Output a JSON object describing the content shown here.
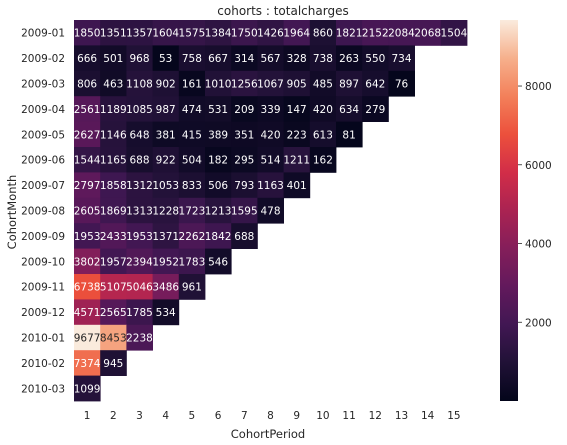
{
  "chart_data": {
    "type": "heatmap",
    "title": "cohorts : totalcharges",
    "xlabel": "CohortPeriod",
    "ylabel": "CohortMonth",
    "x_categories": [
      "1",
      "2",
      "3",
      "4",
      "5",
      "6",
      "7",
      "8",
      "9",
      "10",
      "11",
      "12",
      "13",
      "14",
      "15"
    ],
    "y_categories": [
      "2009-01",
      "2009-02",
      "2009-03",
      "2009-04",
      "2009-05",
      "2009-06",
      "2009-07",
      "2009-08",
      "2009-09",
      "2009-10",
      "2009-11",
      "2009-12",
      "2010-01",
      "2010-02",
      "2010-03"
    ],
    "values": [
      [
        1850,
        1351,
        1357,
        1604,
        1575,
        1384,
        1750,
        1426,
        1964,
        860,
        1821,
        2152,
        2084,
        2068,
        1504
      ],
      [
        666,
        501,
        968,
        53,
        758,
        667,
        314,
        567,
        328,
        738,
        263,
        550,
        734
      ],
      [
        806,
        463,
        1108,
        902,
        161,
        1010,
        1256,
        1067,
        905,
        485,
        897,
        642,
        76
      ],
      [
        2561,
        1189,
        1085,
        987,
        474,
        531,
        209,
        339,
        147,
        420,
        634,
        279
      ],
      [
        2627,
        1146,
        648,
        381,
        415,
        389,
        351,
        420,
        223,
        613,
        81
      ],
      [
        1544,
        1165,
        688,
        922,
        504,
        182,
        295,
        514,
        1211,
        162
      ],
      [
        2797,
        1858,
        1312,
        1053,
        833,
        506,
        793,
        1163,
        401
      ],
      [
        2605,
        1869,
        1313,
        1228,
        1723,
        1213,
        1595,
        478
      ],
      [
        1953,
        2433,
        1953,
        1371,
        2262,
        1842,
        688
      ],
      [
        3802,
        1957,
        2394,
        1952,
        1783,
        546
      ],
      [
        6738,
        5107,
        5046,
        3486,
        961
      ],
      [
        4571,
        2565,
        1785,
        534
      ],
      [
        9677,
        8453,
        2238
      ],
      [
        7374,
        945
      ],
      [
        1099
      ]
    ],
    "colorbar": {
      "ticks": [
        "2000",
        "4000",
        "6000",
        "8000"
      ],
      "range": [
        0,
        9677
      ]
    },
    "colormap": "rocket",
    "grid": false
  }
}
